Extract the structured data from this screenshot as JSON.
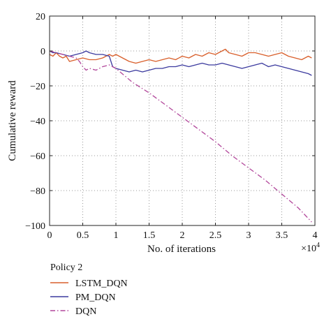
{
  "chart_data": {
    "type": "line",
    "xlabel": "No. of iterations",
    "ylabel": "Cumulative reward",
    "x_multiplier_label": "×10",
    "x_multiplier_exp": "4",
    "xlim": [
      0,
      4
    ],
    "ylim": [
      -100,
      20
    ],
    "x_ticks": [
      0,
      0.5,
      1,
      1.5,
      2,
      2.5,
      3,
      3.5,
      4
    ],
    "x_tick_labels": [
      "0",
      "0.5",
      "1",
      "1.5",
      "2",
      "2.5",
      "3",
      "3.5",
      "4"
    ],
    "y_ticks": [
      20,
      0,
      -20,
      -40,
      -60,
      -80,
      -100
    ],
    "y_tick_labels": [
      "20",
      "0",
      "−20",
      "−40",
      "−60",
      "−80",
      "−100"
    ],
    "grid": true,
    "legend_title": "Policy 2",
    "legend_position": "bottom-left, below plot",
    "series": [
      {
        "name": "LSTM_DQN",
        "color": "#d95f2b",
        "dash": "solid",
        "x": [
          0,
          0.05,
          0.1,
          0.15,
          0.2,
          0.25,
          0.3,
          0.4,
          0.5,
          0.6,
          0.7,
          0.8,
          0.9,
          0.95,
          1.0,
          1.1,
          1.2,
          1.3,
          1.4,
          1.5,
          1.6,
          1.7,
          1.8,
          1.9,
          2.0,
          2.1,
          2.2,
          2.3,
          2.4,
          2.5,
          2.6,
          2.65,
          2.7,
          2.8,
          2.9,
          3.0,
          3.1,
          3.2,
          3.3,
          3.4,
          3.5,
          3.6,
          3.7,
          3.8,
          3.9,
          3.95
        ],
        "y": [
          -2,
          -3,
          -1,
          -3,
          -4,
          -3,
          -6,
          -5,
          -4,
          -5,
          -5,
          -4,
          -2,
          -3,
          -2,
          -4,
          -6,
          -7,
          -6,
          -5,
          -6,
          -5,
          -4,
          -5,
          -3,
          -4,
          -2,
          -3,
          -1,
          -2,
          0,
          1,
          -1,
          -2,
          -3,
          -1,
          -1,
          -2,
          -3,
          -2,
          -1,
          -3,
          -4,
          -5,
          -3,
          -4
        ]
      },
      {
        "name": "PM_DQN",
        "color": "#3b3a9e",
        "dash": "solid",
        "x": [
          0,
          0.05,
          0.1,
          0.2,
          0.3,
          0.4,
          0.5,
          0.55,
          0.6,
          0.7,
          0.8,
          0.9,
          0.95,
          1.0,
          1.1,
          1.2,
          1.3,
          1.4,
          1.5,
          1.6,
          1.7,
          1.8,
          1.9,
          2.0,
          2.1,
          2.2,
          2.3,
          2.4,
          2.5,
          2.6,
          2.7,
          2.8,
          2.9,
          3.0,
          3.1,
          3.2,
          3.3,
          3.4,
          3.5,
          3.6,
          3.7,
          3.8,
          3.9,
          3.95
        ],
        "y": [
          0,
          -1,
          -1,
          -2,
          -3,
          -2,
          -1,
          0,
          -1,
          -2,
          -2,
          -3,
          -9,
          -10,
          -11,
          -12,
          -11,
          -12,
          -11,
          -10,
          -10,
          -9,
          -9,
          -8,
          -9,
          -8,
          -7,
          -8,
          -8,
          -7,
          -8,
          -9,
          -10,
          -9,
          -8,
          -7,
          -9,
          -8,
          -9,
          -10,
          -11,
          -12,
          -13,
          -14
        ]
      },
      {
        "name": "DQN",
        "color": "#b2479b",
        "dash": "dashdot",
        "x": [
          0,
          0.1,
          0.2,
          0.3,
          0.4,
          0.45,
          0.5,
          0.55,
          0.6,
          0.7,
          0.8,
          0.9,
          1.0,
          1.25,
          1.5,
          1.75,
          2.0,
          2.25,
          2.5,
          2.75,
          3.0,
          3.25,
          3.5,
          3.75,
          3.95
        ],
        "y": [
          0,
          -1,
          -2,
          -3,
          -4,
          -6,
          -9,
          -11,
          -10,
          -11,
          -9,
          -8,
          -10,
          -18,
          -24,
          -31,
          -38,
          -45,
          -52,
          -60,
          -67,
          -74,
          -82,
          -90,
          -98
        ]
      }
    ]
  }
}
